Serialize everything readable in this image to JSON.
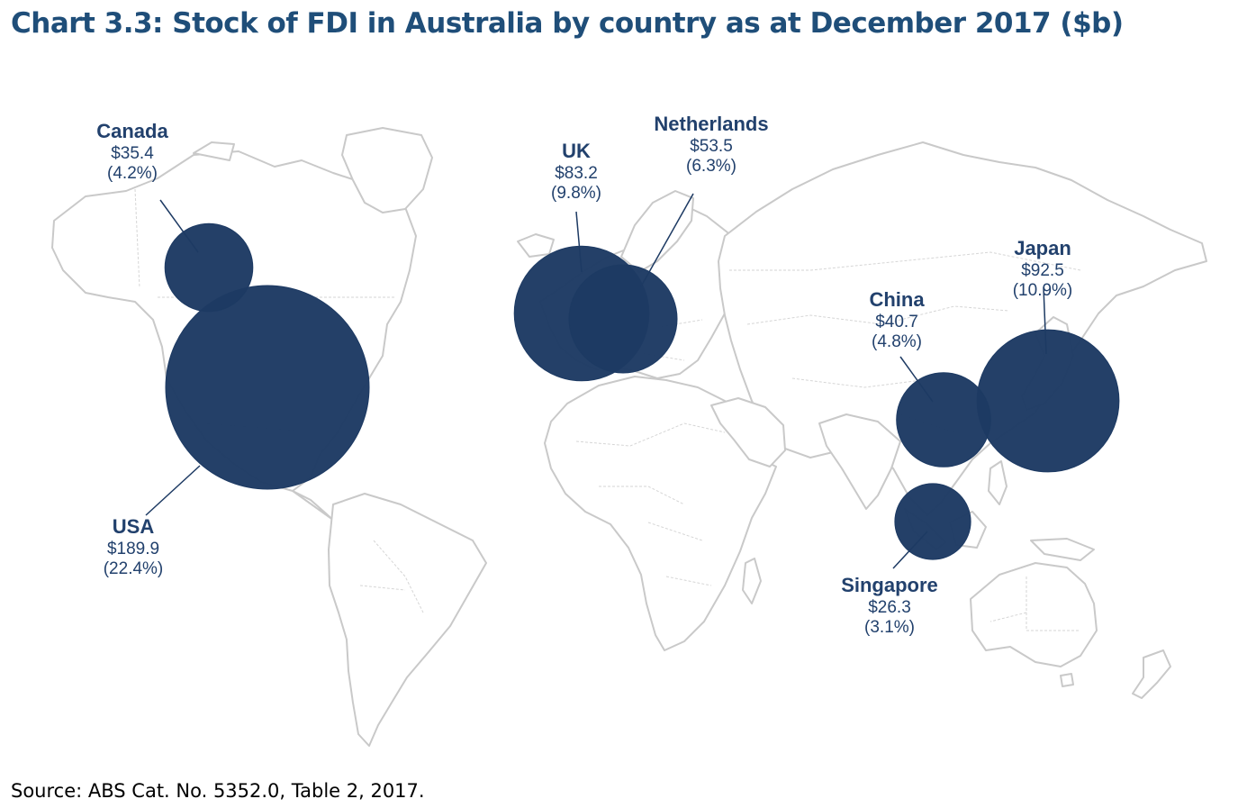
{
  "title": "Chart 3.3: Stock of FDI in Australia by country as at December 2017 ($b)",
  "source": "Source: ABS Cat. No. 5352.0, Table 2, 2017.",
  "chart_data": {
    "type": "bubble-map",
    "unit": "$b",
    "points": [
      {
        "country": "USA",
        "value": 189.9,
        "value_label": "$189.9",
        "share_label": "(22.4%)"
      },
      {
        "country": "Japan",
        "value": 92.5,
        "value_label": "$92.5",
        "share_label": "(10.9%)"
      },
      {
        "country": "UK",
        "value": 83.2,
        "value_label": "$83.2",
        "share_label": "(9.8%)"
      },
      {
        "country": "Netherlands",
        "value": 53.5,
        "value_label": "$53.5",
        "share_label": "(6.3%)"
      },
      {
        "country": "China",
        "value": 40.7,
        "value_label": "$40.7",
        "share_label": "(4.8%)"
      },
      {
        "country": "Canada",
        "value": 35.4,
        "value_label": "$35.4",
        "share_label": "(4.2%)"
      },
      {
        "country": "Singapore",
        "value": 26.3,
        "value_label": "$26.3",
        "share_label": "(3.1%)"
      }
    ],
    "colors": {
      "bubble": "#1d3a63",
      "label": "#22416d",
      "land_outline": "#c9c9c9",
      "title": "#1f4e79"
    }
  }
}
